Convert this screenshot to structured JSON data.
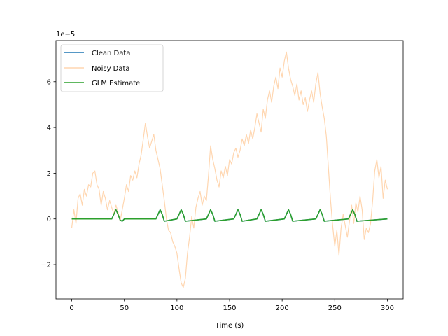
{
  "chart_data": {
    "type": "line",
    "title": "",
    "xlabel": "Time (s)",
    "ylabel": "",
    "y_offset_text": "1e−5",
    "xlim": [
      -15,
      315
    ],
    "ylim": [
      -3.5,
      7.8
    ],
    "y_scale_factor": 1e-05,
    "xticks": [
      0,
      50,
      100,
      150,
      200,
      250,
      300
    ],
    "yticks": [
      -2,
      0,
      2,
      4,
      6
    ],
    "ytick_labels": [
      "−2",
      "0",
      "2",
      "4",
      "6"
    ],
    "grid": false,
    "legend": {
      "placement": "upper-left",
      "entries": [
        "Clean Data",
        "Noisy Data",
        "GLM Estimate"
      ]
    },
    "series": [
      {
        "name": "Clean Data",
        "color": "#1f77b4",
        "style": "solid",
        "x": [
          0,
          38,
          40,
          42,
          44,
          46,
          48,
          50,
          80,
          82,
          84,
          86,
          88,
          100,
          102,
          104,
          106,
          108,
          128,
          130,
          132,
          134,
          136,
          154,
          156,
          158,
          160,
          162,
          176,
          178,
          180,
          182,
          184,
          202,
          204,
          206,
          208,
          210,
          232,
          234,
          236,
          238,
          240,
          263,
          265,
          267,
          269,
          271,
          300
        ],
        "y": [
          0,
          0,
          0.2,
          0.4,
          0.2,
          -0.05,
          -0.1,
          0,
          0,
          0.2,
          0.4,
          0.2,
          -0.1,
          0,
          0.2,
          0.4,
          0.2,
          -0.1,
          0,
          0.2,
          0.4,
          0.2,
          -0.1,
          0,
          0.2,
          0.4,
          0.2,
          -0.1,
          0,
          0.2,
          0.4,
          0.2,
          -0.1,
          0,
          0.2,
          0.4,
          0.2,
          -0.1,
          0,
          0.2,
          0.4,
          0.2,
          -0.1,
          0,
          0.2,
          0.4,
          0.2,
          -0.1,
          0
        ]
      },
      {
        "name": "Noisy Data",
        "color": "#ffd6b0",
        "style": "solid",
        "x": [
          0,
          2,
          4,
          6,
          8,
          10,
          12,
          14,
          16,
          18,
          20,
          22,
          24,
          26,
          28,
          30,
          32,
          34,
          36,
          38,
          40,
          42,
          44,
          46,
          48,
          50,
          52,
          54,
          56,
          58,
          60,
          62,
          64,
          66,
          68,
          70,
          72,
          74,
          76,
          78,
          80,
          82,
          84,
          86,
          88,
          90,
          92,
          94,
          96,
          98,
          100,
          102,
          104,
          106,
          108,
          110,
          112,
          114,
          116,
          118,
          120,
          122,
          124,
          126,
          128,
          130,
          132,
          134,
          136,
          138,
          140,
          142,
          144,
          146,
          148,
          150,
          152,
          154,
          156,
          158,
          160,
          162,
          164,
          166,
          168,
          170,
          172,
          174,
          176,
          178,
          180,
          182,
          184,
          186,
          188,
          190,
          192,
          194,
          196,
          198,
          200,
          202,
          204,
          206,
          208,
          210,
          212,
          214,
          216,
          218,
          220,
          222,
          224,
          226,
          228,
          230,
          232,
          234,
          236,
          238,
          240,
          242,
          244,
          246,
          248,
          250,
          252,
          254,
          256,
          258,
          260,
          262,
          264,
          266,
          268,
          270,
          272,
          274,
          276,
          278,
          280,
          282,
          284,
          286,
          288,
          290,
          292,
          294,
          296,
          298,
          300
        ],
        "y": [
          -0.4,
          0.4,
          -0.2,
          0.9,
          1.1,
          0.6,
          1.3,
          1.0,
          1.5,
          1.4,
          2.0,
          2.1,
          1.5,
          1.3,
          0.6,
          1.2,
          0.9,
          0.4,
          0.8,
          0.5,
          0.2,
          0.6,
          0.3,
          -0.1,
          0.4,
          0.9,
          1.5,
          1.2,
          1.9,
          1.7,
          2.1,
          1.8,
          2.4,
          2.8,
          3.5,
          4.2,
          3.6,
          3.1,
          3.4,
          3.7,
          3.0,
          2.6,
          2.2,
          1.5,
          0.8,
          0.0,
          -0.5,
          -0.6,
          -1.0,
          -1.2,
          -1.5,
          -2.2,
          -2.8,
          -3.0,
          -2.6,
          -1.5,
          -0.8,
          0.1,
          -0.4,
          0.5,
          0.9,
          1.2,
          0.6,
          1.0,
          0.8,
          1.9,
          3.2,
          2.6,
          2.2,
          1.7,
          1.4,
          2.1,
          1.8,
          2.3,
          1.9,
          2.6,
          2.4,
          2.9,
          3.1,
          2.7,
          3.0,
          3.5,
          3.2,
          3.7,
          3.3,
          3.9,
          3.5,
          4.0,
          4.6,
          4.2,
          3.8,
          4.8,
          4.4,
          5.2,
          5.6,
          5.1,
          5.8,
          6.2,
          5.7,
          6.6,
          6.2,
          6.9,
          7.3,
          6.6,
          6.1,
          5.8,
          5.4,
          5.9,
          5.2,
          5.6,
          5.0,
          5.3,
          4.7,
          5.2,
          5.6,
          5.1,
          5.9,
          6.4,
          5.5,
          4.9,
          4.4,
          3.6,
          2.2,
          0.8,
          -0.3,
          -1.2,
          -0.5,
          -1.6,
          -0.4,
          0.2,
          -0.3,
          -0.8,
          -0.1,
          0.6,
          -0.2,
          0.7,
          0.3,
          1.0,
          0.4,
          -0.9,
          -0.4,
          -0.6,
          -0.2,
          0.8,
          2.1,
          2.6,
          1.8,
          2.3,
          0.9,
          1.7,
          1.3
        ]
      },
      {
        "name": "GLM Estimate",
        "color": "#2ca02c",
        "style": "solid",
        "x": [
          0,
          38,
          40,
          42,
          44,
          46,
          48,
          50,
          80,
          82,
          84,
          86,
          88,
          100,
          102,
          104,
          106,
          108,
          128,
          130,
          132,
          134,
          136,
          154,
          156,
          158,
          160,
          162,
          176,
          178,
          180,
          182,
          184,
          202,
          204,
          206,
          208,
          210,
          232,
          234,
          236,
          238,
          240,
          263,
          265,
          267,
          269,
          271,
          300
        ],
        "y": [
          0,
          0,
          0.2,
          0.4,
          0.2,
          -0.05,
          -0.1,
          0,
          0,
          0.2,
          0.4,
          0.2,
          -0.1,
          0,
          0.2,
          0.4,
          0.2,
          -0.1,
          0,
          0.2,
          0.4,
          0.2,
          -0.1,
          0,
          0.2,
          0.4,
          0.2,
          -0.1,
          0,
          0.2,
          0.4,
          0.2,
          -0.1,
          0,
          0.2,
          0.4,
          0.2,
          -0.1,
          0,
          0.2,
          0.4,
          0.2,
          -0.1,
          0,
          0.2,
          0.4,
          0.2,
          -0.1,
          0
        ]
      }
    ]
  }
}
